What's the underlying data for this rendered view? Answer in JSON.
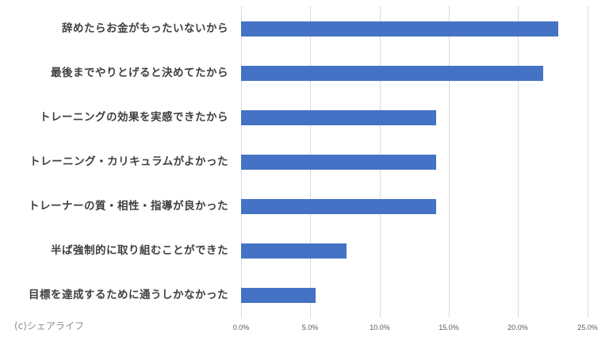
{
  "chart_data": {
    "type": "bar",
    "orientation": "horizontal",
    "title": "",
    "xlabel": "",
    "ylabel": "",
    "categories": [
      "辞めたらお金がもったいないから",
      "最後までやりとげると決めてたから",
      "トレーニングの効果を実感できたから",
      "トレーニング・カリキュラムがよかった",
      "トレーナーの質・相性・指導が良かった",
      "半ば強制的に取り組むことができた",
      "目標を達成するために通うしかなかった"
    ],
    "values": [
      22.9,
      21.8,
      14.1,
      14.1,
      14.1,
      7.6,
      5.4
    ],
    "unit": "%",
    "xlim": [
      0,
      25
    ],
    "x_ticks": [
      "0.0%",
      "5.0%",
      "10.0%",
      "15.0%",
      "20.0%",
      "25.0%"
    ],
    "grid": "vertical",
    "legend": null,
    "bar_color": "#4472C4",
    "annotation": "(c)シェアライフ"
  }
}
